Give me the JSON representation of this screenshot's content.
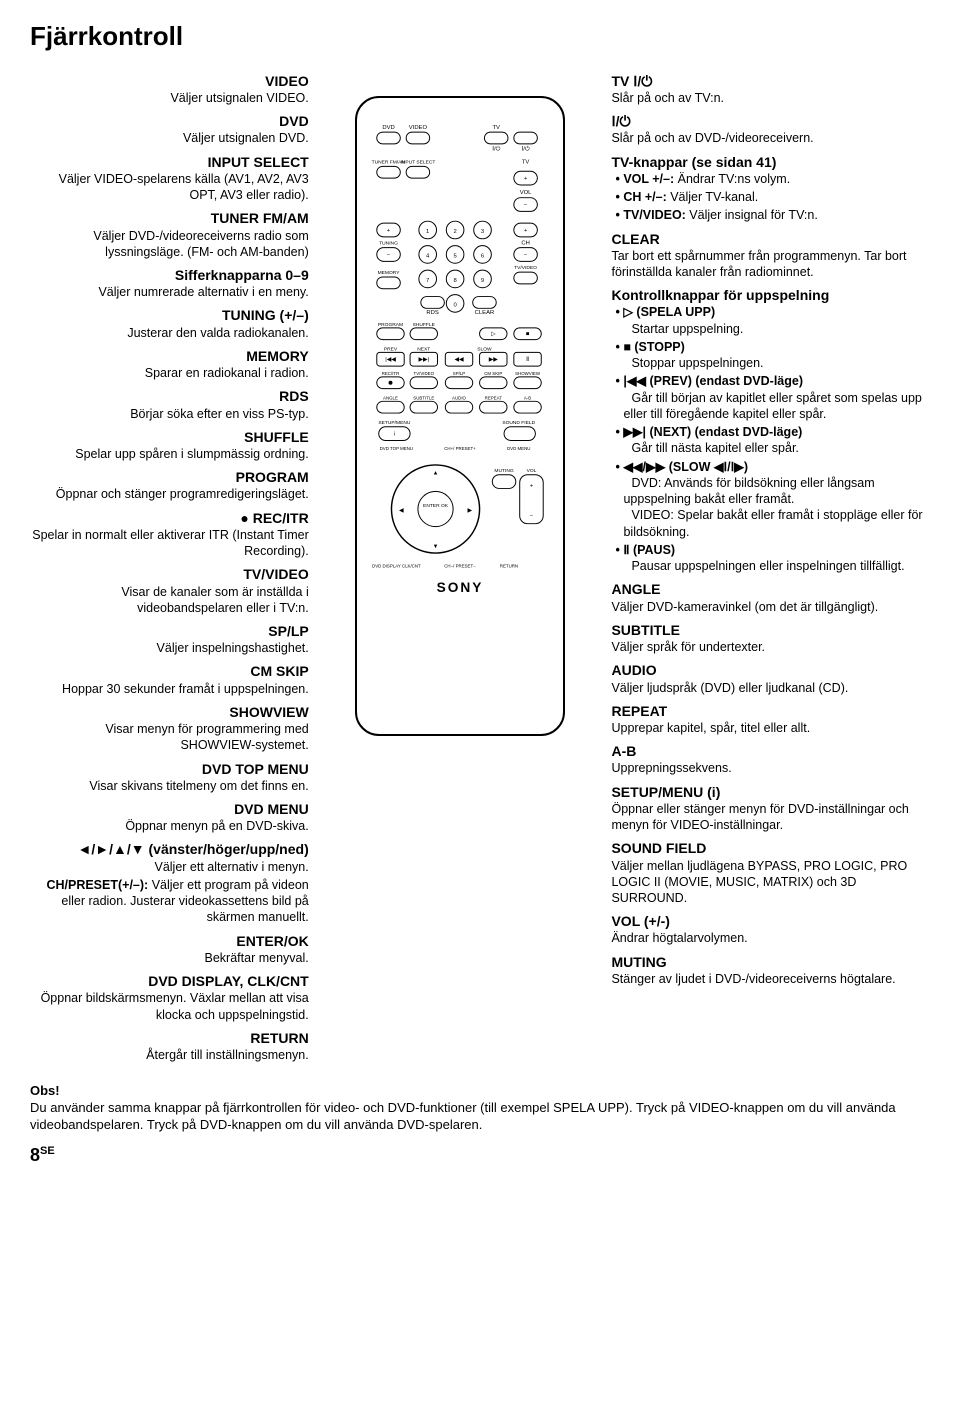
{
  "page_title": "Fjärrkontroll",
  "left": [
    {
      "t": "VIDEO",
      "d": "Väljer utsignalen VIDEO."
    },
    {
      "t": "DVD",
      "d": "Väljer utsignalen DVD."
    },
    {
      "t": "INPUT SELECT",
      "d": "Väljer VIDEO-spelarens källa (AV1, AV2, AV3 OPT, AV3 eller radio)."
    },
    {
      "t": "TUNER FM/AM",
      "d": "Väljer DVD-/videoreceiverns radio som lyssningsläge. (FM- och AM-banden)"
    },
    {
      "t": "Sifferknapparna 0–9",
      "d": "Väljer numrerade alternativ i en meny."
    },
    {
      "t": "TUNING (+/–)",
      "d": "Justerar den valda radiokanalen."
    },
    {
      "t": "MEMORY",
      "d": "Sparar en radiokanal i radion."
    },
    {
      "t": "RDS",
      "d": "Börjar söka efter en viss PS-typ."
    },
    {
      "t": "SHUFFLE",
      "d": "Spelar upp spåren i slumpmässig ordning."
    },
    {
      "t": "PROGRAM",
      "d": "Öppnar och stänger programredigeringsläget."
    },
    {
      "t": "● REC/ITR",
      "d": "Spelar in normalt eller aktiverar ITR (Instant Timer Recording)."
    },
    {
      "t": "TV/VIDEO",
      "d": "Visar de kanaler som är inställda i videobandspelaren eller i TV:n."
    },
    {
      "t": "SP/LP",
      "d": "Väljer inspelningshastighet."
    },
    {
      "t": "CM SKIP",
      "d": "Hoppar 30 sekunder framåt i uppspelningen."
    },
    {
      "t": "SHOWVIEW",
      "d": "Visar menyn för programmering med SHOWVIEW-systemet."
    },
    {
      "t": "DVD TOP MENU",
      "d": "Visar skivans titelmeny om det finns en."
    },
    {
      "t": "DVD MENU",
      "d": "Öppnar menyn på en DVD-skiva."
    },
    {
      "t": "◄/►/▲/▼ (vänster/höger/upp/ned)",
      "d": "Väljer ett alternativ i menyn."
    },
    {
      "t": "",
      "d": "CH/PRESET(+/–): Väljer ett program på videon eller radion. Justerar videokassettens bild på skärmen manuellt.",
      "no_title": true,
      "bold_prefix": "CH/PRESET(+/–):"
    },
    {
      "t": "ENTER/OK",
      "d": "Bekräftar menyval."
    },
    {
      "t": "DVD DISPLAY, CLK/CNT",
      "d": "Öppnar bildskärmsmenyn. Växlar mellan att visa klocka och uppspelningstid."
    },
    {
      "t": "RETURN",
      "d": "Återgår till inställningsmenyn."
    }
  ],
  "right": [
    {
      "t": "TV Ⅰ/⏻",
      "d": "Slår på och av TV:n."
    },
    {
      "t": "Ⅰ/⏻",
      "d": "Slår på och av DVD-/videoreceivern."
    },
    {
      "t": "TV-knappar (se sidan 41)",
      "bullets": [
        {
          "b": "VOL +/–:",
          "rest": " Ändrar TV:ns volym."
        },
        {
          "b": "CH +/–:",
          "rest": " Väljer TV-kanal."
        },
        {
          "b": "TV/VIDEO:",
          "rest": " Väljer insignal för TV:n."
        }
      ]
    },
    {
      "t": "CLEAR",
      "d": "Tar bort ett spårnummer från programmenyn. Tar bort förinställda kanaler från radiominnet."
    },
    {
      "t": "Kontrollknappar för uppspelning",
      "bullets": [
        {
          "b": "▷ (SPELA UPP)",
          "rest": "\nStartar uppspelning."
        },
        {
          "b": "■ (STOPP)",
          "rest": "\nStoppar uppspelningen."
        },
        {
          "b": "|◀◀ (PREV) (endast DVD-läge)",
          "rest": "\nGår till början av kapitlet eller spåret som spelas upp eller till föregående kapitel eller spår."
        },
        {
          "b": "▶▶| (NEXT) (endast DVD-läge)",
          "rest": "\nGår till nästa kapitel eller spår."
        },
        {
          "b": "◀◀/▶▶  (SLOW ◀Ⅰ/Ⅰ▶)",
          "rest": "\nDVD: Används för bildsökning eller långsam uppspelning bakåt eller framåt.\nVIDEO: Spelar bakåt eller framåt i stoppläge eller för bildsökning."
        },
        {
          "b": "Ⅱ (PAUS)",
          "rest": "\nPausar uppspelningen eller inspelningen tillfälligt."
        }
      ]
    },
    {
      "t": "ANGLE",
      "d": "Väljer DVD-kameravinkel (om det är tillgängligt)."
    },
    {
      "t": "SUBTITLE",
      "d": "Väljer språk för undertexter."
    },
    {
      "t": "AUDIO",
      "d": "Väljer ljudspråk (DVD) eller ljudkanal (CD)."
    },
    {
      "t": "REPEAT",
      "d": "Upprepar kapitel, spår, titel eller allt."
    },
    {
      "t": "A-B",
      "d": "Upprepningssekvens."
    },
    {
      "t": "SETUP/MENU (i)",
      "d": "Öppnar eller stänger menyn för DVD-inställningar och menyn för VIDEO-inställningar."
    },
    {
      "t": "SOUND FIELD",
      "d": "Väljer mellan ljudlägena BYPASS, PRO LOGIC, PRO LOGIC II (MOVIE, MUSIC, MATRIX) och 3D SURROUND."
    },
    {
      "t": "VOL (+/-)",
      "d": "Ändrar högtalarvolymen."
    },
    {
      "t": "MUTING",
      "d": "Stänger av ljudet i DVD-/videoreceiverns högtalare."
    }
  ],
  "footer": {
    "obs": "Obs!",
    "text": "Du använder samma knappar på fjärrkontrollen för video- och DVD-funktioner (till exempel SPELA UPP). Tryck på VIDEO-knappen om du vill använda videobandspelaren. Tryck på DVD-knappen om du vill använda DVD-spelaren."
  },
  "page_num": "8",
  "page_suffix": "SE",
  "remote": {
    "brand": "SONY",
    "top_labels": [
      "DVD",
      "VIDEO",
      "TV",
      "Ⅰ/⏻",
      "Ⅰ/⏻"
    ],
    "row2": [
      "TUNER FM/AM",
      "INPUT SELECT",
      "",
      "TV"
    ],
    "vol": "VOL",
    "tuning": "TUNING",
    "memory": "MEMORY",
    "ch": "CH",
    "tvvideo": "TV/VIDEO",
    "rds": "RDS",
    "clear": "CLEAR",
    "program": "PROGRAM",
    "shuffle": "SHUFFLE",
    "transport": [
      "PREV",
      "NEXT",
      "SLOW"
    ],
    "row_rec": [
      "REC/ITR",
      "TV/VIDEO",
      "SP/LP",
      "CM SKIP",
      "SHOWVIEW"
    ],
    "row_ang": [
      "ANGLE",
      "SUBTITLE",
      "AUDIO",
      "REPEAT",
      "A-B"
    ],
    "setup": "SETUP/MENU",
    "soundfield": "SOUND FIELD",
    "dvdtop": "DVD TOP MENU",
    "chpreset": "CH+/ PRESET+",
    "dvdmenu": "DVD MENU",
    "enter": "ENTER OK",
    "muting": "MUTING",
    "vol2": "VOL",
    "dvddisp": "DVD DISPLAY CLK/CNT",
    "chpreset2": "CH−/ PRESET−",
    "return": "RETURN"
  }
}
